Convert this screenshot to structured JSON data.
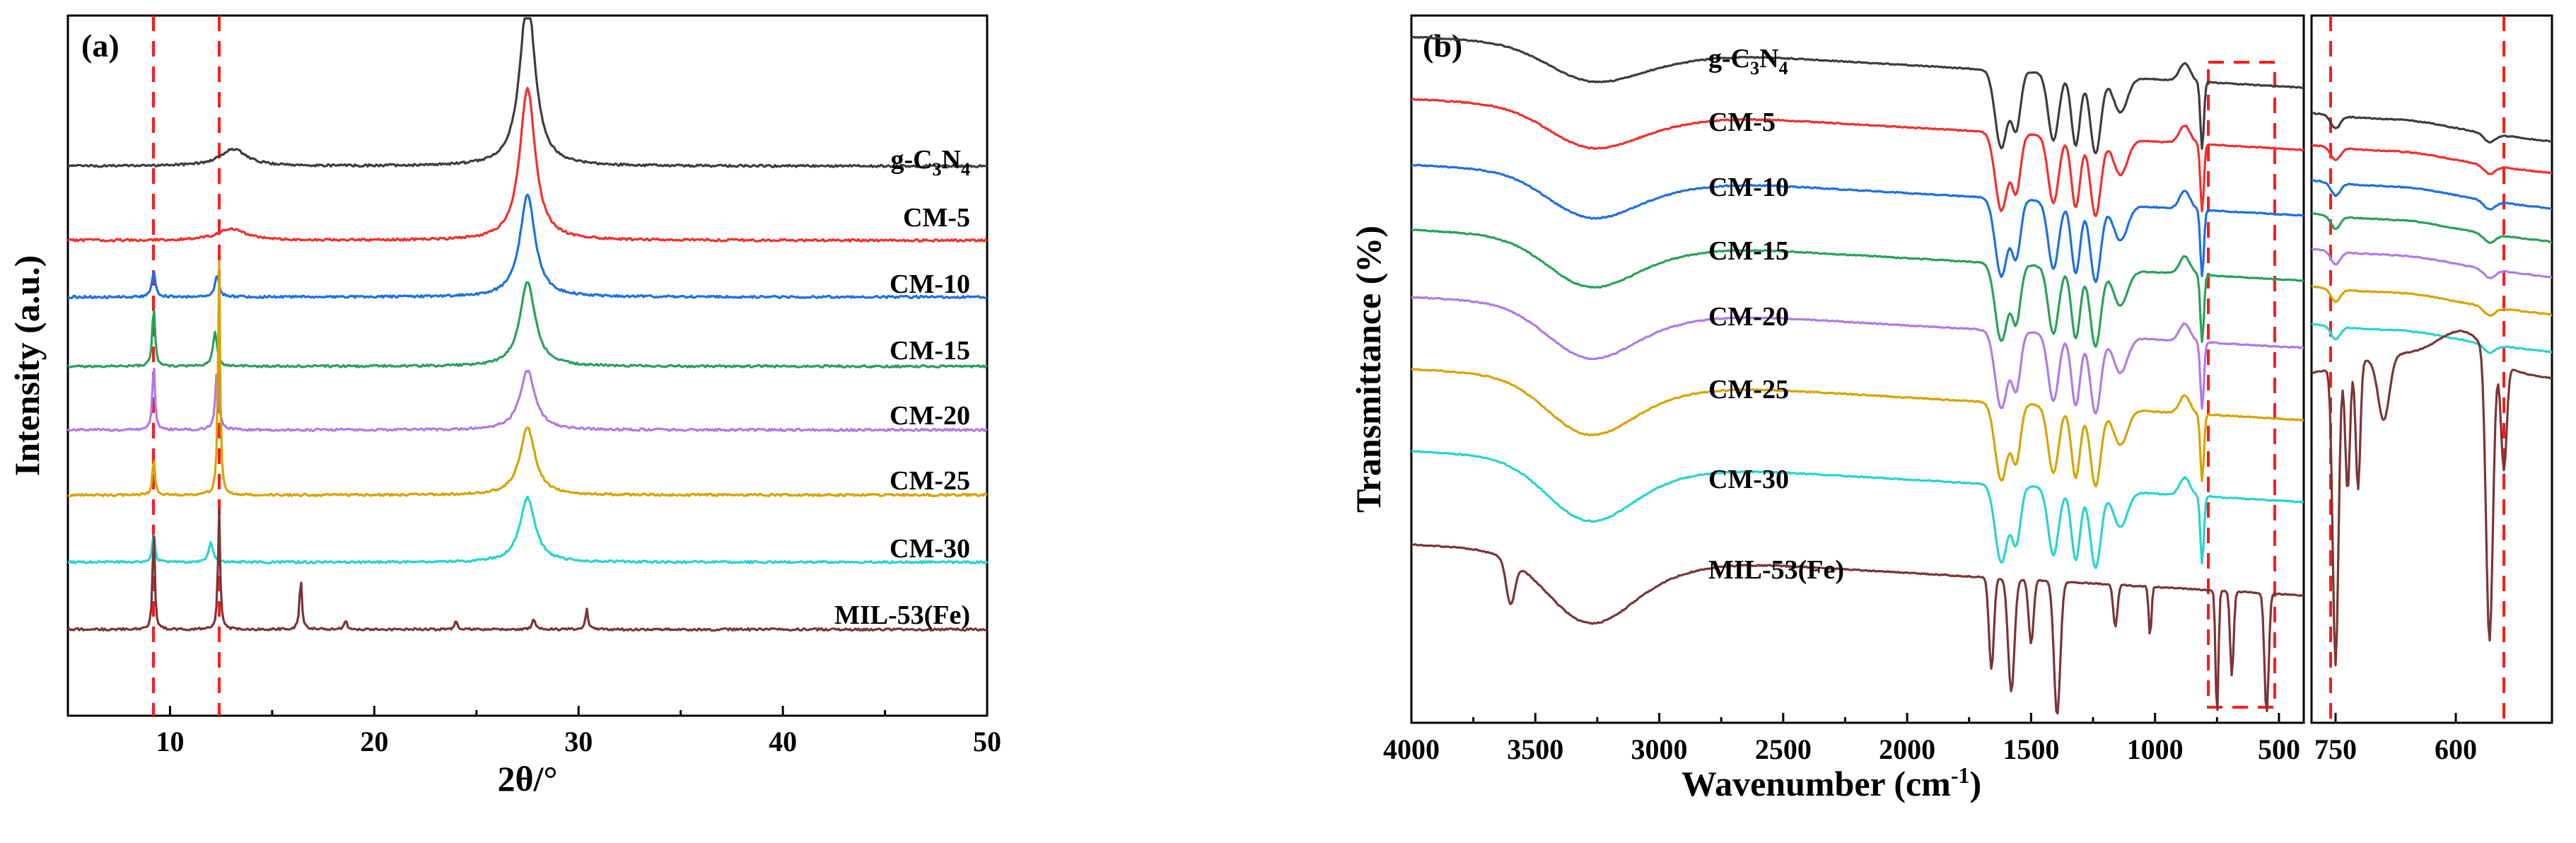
{
  "colors": {
    "g_C3N4": "#3d3d3d",
    "CM_5": "#f0302c",
    "CM_10": "#1f6fe0",
    "CM_15": "#2aa05a",
    "CM_20": "#b07ae6",
    "CM_25": "#d7a300",
    "CM_30": "#28d3d0",
    "MIL_53": "#7a3535",
    "highlight": "#ff1a1a"
  },
  "chart_data": [
    {
      "panel": "(a)",
      "type": "line",
      "title": "",
      "xlabel": "2θ/°",
      "ylabel": "Intensity (a.u.)",
      "xlim": [
        5,
        50
      ],
      "xticks": [
        10,
        20,
        30,
        40,
        50
      ],
      "xtick_labels": [
        "10",
        "20",
        "30",
        "40",
        "50"
      ],
      "grid": false,
      "highlight_lines_x": [
        9.2,
        12.4
      ],
      "series": [
        {
          "name": "g-C3N4",
          "label_main": "g-C",
          "label_sub1": "3",
          "label_mid": "N",
          "label_sub2": "4",
          "color_key": "g_C3N4",
          "peaks": [
            {
              "center": 27.5,
              "height": 1.0,
              "width": 0.45
            },
            {
              "center": 13.1,
              "height": 0.1,
              "width": 0.8
            }
          ]
        },
        {
          "name": "CM-5",
          "label": "CM-5",
          "color_key": "CM_5",
          "peaks": [
            {
              "center": 27.5,
              "height": 0.9,
              "width": 0.45
            },
            {
              "center": 13.0,
              "height": 0.07,
              "width": 0.8
            }
          ]
        },
        {
          "name": "CM-10",
          "label": "CM-10",
          "color_key": "CM_10",
          "peaks": [
            {
              "center": 27.5,
              "height": 0.6,
              "width": 0.45
            },
            {
              "center": 9.2,
              "height": 0.15,
              "width": 0.1
            },
            {
              "center": 12.3,
              "height": 0.13,
              "width": 0.12
            }
          ]
        },
        {
          "name": "CM-15",
          "label": "CM-15",
          "color_key": "CM_15",
          "peaks": [
            {
              "center": 27.5,
              "height": 0.5,
              "width": 0.45
            },
            {
              "center": 9.2,
              "height": 0.35,
              "width": 0.08
            },
            {
              "center": 12.2,
              "height": 0.2,
              "width": 0.12
            }
          ]
        },
        {
          "name": "CM-20",
          "label": "CM-20",
          "color_key": "CM_20",
          "peaks": [
            {
              "center": 27.5,
              "height": 0.35,
              "width": 0.45
            },
            {
              "center": 9.2,
              "height": 0.4,
              "width": 0.07
            },
            {
              "center": 12.3,
              "height": 0.35,
              "width": 0.1
            }
          ]
        },
        {
          "name": "CM-25",
          "label": "CM-25",
          "color_key": "CM_25",
          "peaks": [
            {
              "center": 27.5,
              "height": 0.4,
              "width": 0.45
            },
            {
              "center": 9.2,
              "height": 0.22,
              "width": 0.07
            },
            {
              "center": 12.4,
              "height": 1.4,
              "width": 0.06
            }
          ]
        },
        {
          "name": "CM-30",
          "label": "CM-30",
          "color_key": "CM_30",
          "peaks": [
            {
              "center": 27.5,
              "height": 0.38,
              "width": 0.45
            },
            {
              "center": 9.2,
              "height": 0.18,
              "width": 0.07
            },
            {
              "center": 12.0,
              "height": 0.12,
              "width": 0.12
            }
          ]
        },
        {
          "name": "MIL-53(Fe)",
          "label": "MIL-53(Fe)",
          "color_key": "MIL_53",
          "peaks": [
            {
              "center": 9.2,
              "height": 0.62,
              "width": 0.06
            },
            {
              "center": 12.4,
              "height": 0.72,
              "width": 0.06
            },
            {
              "center": 16.4,
              "height": 0.3,
              "width": 0.07
            },
            {
              "center": 18.6,
              "height": 0.05,
              "width": 0.08
            },
            {
              "center": 24.0,
              "height": 0.05,
              "width": 0.08
            },
            {
              "center": 27.8,
              "height": 0.06,
              "width": 0.08
            },
            {
              "center": 30.4,
              "height": 0.13,
              "width": 0.07
            }
          ]
        }
      ]
    },
    {
      "panel": "(b)",
      "type": "line",
      "title": "",
      "xlabel": "Wavenumber (cm",
      "xlabel_sup": "-1",
      "xlabel_end": ")",
      "ylabel": "Transmittance (%)",
      "xlim": [
        4000,
        400
      ],
      "xticks": [
        4000,
        3500,
        3000,
        2500,
        2000,
        1500,
        1000,
        500
      ],
      "xtick_labels": [
        "4000",
        "3500",
        "3000",
        "2500",
        "2000",
        "1500",
        "1000",
        "500"
      ],
      "inset_xlim": [
        780,
        480
      ],
      "inset_xticks": [
        750,
        600
      ],
      "inset_xtick_labels": [
        "750",
        "600"
      ],
      "highlight_box_x": [
        780,
        480
      ],
      "highlight_lines_x": [
        750,
        558
      ],
      "grid": false,
      "series": [
        {
          "name": "g-C3N4",
          "label_main": "g-C",
          "label_sub1": "3",
          "label_mid": "N",
          "label_sub2": "4",
          "color_key": "g_C3N4"
        },
        {
          "name": "CM-5",
          "label": "CM-5",
          "color_key": "CM_5"
        },
        {
          "name": "CM-10",
          "label": "CM-10",
          "color_key": "CM_10"
        },
        {
          "name": "CM-15",
          "label": "CM-15",
          "color_key": "CM_15"
        },
        {
          "name": "CM-20",
          "label": "CM-20",
          "color_key": "CM_20"
        },
        {
          "name": "CM-25",
          "label": "CM-25",
          "color_key": "CM_25"
        },
        {
          "name": "CM-30",
          "label": "CM-30",
          "color_key": "CM_30"
        },
        {
          "name": "MIL-53(Fe)",
          "label": "MIL-53(Fe)",
          "color_key": "MIL_53"
        }
      ]
    }
  ]
}
